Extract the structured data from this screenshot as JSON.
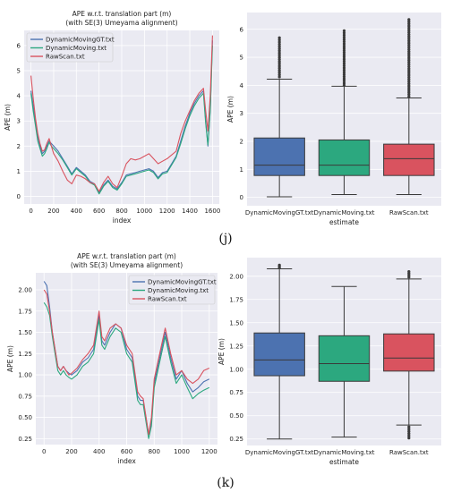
{
  "figure_labels": {
    "j": "(j)",
    "k": "(k)"
  },
  "colors": {
    "gt": "#4c72b0",
    "moving": "#2ca87f",
    "raw": "#d9535f",
    "panel_bg": "#eaeaf2",
    "grid": "#ffffff"
  },
  "chart_data": [
    {
      "id": "j-line",
      "type": "line",
      "title": "APE w.r.t. translation part (m)",
      "subtitle": "(with SE(3) Umeyama alignment)",
      "xlabel": "index",
      "ylabel": "APE (m)",
      "xlim": [
        -60,
        1660
      ],
      "ylim": [
        -0.3,
        6.6
      ],
      "xticks": [
        0,
        200,
        400,
        600,
        800,
        1000,
        1200,
        1400,
        1600
      ],
      "yticks": [
        0,
        1,
        2,
        3,
        4,
        5,
        6
      ],
      "grid": true,
      "legend": "top-left",
      "series": [
        {
          "name": "DynamicMovingGT.txt",
          "color": "#4c72b0",
          "x": [
            0,
            20,
            40,
            60,
            80,
            100,
            120,
            140,
            160,
            180,
            200,
            240,
            280,
            320,
            360,
            400,
            440,
            480,
            520,
            560,
            600,
            640,
            680,
            720,
            760,
            800,
            840,
            880,
            920,
            960,
            1000,
            1040,
            1080,
            1120,
            1160,
            1200,
            1240,
            1280,
            1320,
            1360,
            1400,
            1440,
            1480,
            1520,
            1540,
            1560,
            1580,
            1600
          ],
          "y": [
            4.2,
            3.6,
            2.9,
            2.4,
            2.0,
            1.7,
            1.8,
            2.0,
            2.2,
            2.1,
            2.0,
            1.8,
            1.5,
            1.2,
            0.9,
            1.15,
            1.0,
            0.85,
            0.6,
            0.5,
            0.15,
            0.45,
            0.65,
            0.4,
            0.3,
            0.55,
            0.85,
            0.9,
            0.95,
            1.0,
            1.05,
            1.1,
            1.0,
            0.75,
            0.95,
            1.0,
            1.3,
            1.6,
            2.2,
            2.8,
            3.3,
            3.7,
            4.0,
            4.2,
            3.0,
            2.0,
            3.5,
            6.2
          ]
        },
        {
          "name": "DynamicMovingTxt",
          "display_name": "DynamicMoving.txt",
          "color": "#2ca87f",
          "x": [
            0,
            20,
            40,
            60,
            80,
            100,
            120,
            140,
            160,
            180,
            200,
            240,
            280,
            320,
            360,
            400,
            440,
            480,
            520,
            560,
            600,
            640,
            680,
            720,
            760,
            800,
            840,
            880,
            920,
            960,
            1000,
            1040,
            1080,
            1120,
            1160,
            1200,
            1240,
            1280,
            1320,
            1360,
            1400,
            1440,
            1480,
            1520,
            1540,
            1560,
            1580,
            1600
          ],
          "y": [
            4.1,
            3.4,
            2.8,
            2.2,
            1.9,
            1.6,
            1.7,
            1.9,
            2.15,
            2.0,
            1.9,
            1.7,
            1.45,
            1.15,
            0.85,
            1.1,
            0.95,
            0.8,
            0.55,
            0.45,
            0.1,
            0.4,
            0.6,
            0.35,
            0.25,
            0.5,
            0.8,
            0.85,
            0.9,
            0.95,
            1.0,
            1.05,
            0.95,
            0.7,
            0.9,
            0.95,
            1.25,
            1.55,
            2.1,
            2.7,
            3.2,
            3.6,
            3.9,
            4.1,
            2.9,
            2.05,
            3.4,
            6.0
          ]
        },
        {
          "name": "RawScan.txt",
          "color": "#d9535f",
          "x": [
            0,
            20,
            40,
            60,
            80,
            100,
            120,
            140,
            160,
            180,
            200,
            240,
            280,
            320,
            360,
            400,
            440,
            480,
            520,
            560,
            600,
            640,
            680,
            720,
            760,
            800,
            840,
            880,
            920,
            960,
            1000,
            1040,
            1080,
            1120,
            1160,
            1200,
            1240,
            1280,
            1320,
            1360,
            1400,
            1440,
            1480,
            1520,
            1540,
            1560,
            1580,
            1600
          ],
          "y": [
            4.8,
            3.9,
            3.1,
            2.5,
            2.1,
            1.8,
            1.85,
            2.1,
            2.3,
            2.0,
            1.7,
            1.4,
            1.0,
            0.65,
            0.5,
            0.85,
            0.8,
            0.7,
            0.55,
            0.5,
            0.2,
            0.55,
            0.8,
            0.5,
            0.35,
            0.8,
            1.3,
            1.5,
            1.45,
            1.5,
            1.6,
            1.7,
            1.5,
            1.3,
            1.4,
            1.5,
            1.65,
            1.8,
            2.5,
            3.0,
            3.4,
            3.8,
            4.1,
            4.3,
            3.4,
            2.6,
            4.0,
            6.4
          ]
        }
      ]
    },
    {
      "id": "j-box",
      "type": "box",
      "xlabel": "estimate",
      "ylabel": "APE (m)",
      "ylim": [
        -0.3,
        6.6
      ],
      "yticks": [
        0,
        1,
        2,
        3,
        4,
        5,
        6
      ],
      "grid": true,
      "categories": [
        "DynamicMovingGT.txt",
        "DynamicMoving.txt",
        "RawScan.txt"
      ],
      "boxes": [
        {
          "min": 0.02,
          "q1": 0.78,
          "median": 1.15,
          "q3": 2.12,
          "max": 4.22,
          "outlier_range": [
            4.3,
            5.7
          ],
          "color": "#4c72b0"
        },
        {
          "min": 0.1,
          "q1": 0.78,
          "median": 1.15,
          "q3": 2.05,
          "max": 3.97,
          "outlier_range": [
            4.0,
            5.95
          ],
          "color": "#2ca87f"
        },
        {
          "min": 0.1,
          "q1": 0.78,
          "median": 1.38,
          "q3": 1.9,
          "max": 3.55,
          "outlier_range": [
            3.6,
            6.35
          ],
          "color": "#d9535f"
        }
      ]
    },
    {
      "id": "k-line",
      "type": "line",
      "title": "APE w.r.t. translation part (m)",
      "subtitle": "(with SE(3) Umeyama alignment)",
      "xlabel": "index",
      "ylabel": "APE (m)",
      "xlim": [
        -60,
        1260
      ],
      "ylim": [
        0.18,
        2.2
      ],
      "xticks": [
        0,
        200,
        400,
        600,
        800,
        1000,
        1200
      ],
      "yticks": [
        0.25,
        0.5,
        0.75,
        1.0,
        1.25,
        1.5,
        1.75,
        2.0
      ],
      "ytick_labels": [
        "0.25",
        "0.50",
        "0.75",
        "1.00",
        "1.25",
        "1.50",
        "1.75",
        "2.00"
      ],
      "grid": true,
      "legend": "top-right",
      "series": [
        {
          "name": "DynamicMovingGT.txt",
          "color": "#4c72b0",
          "x": [
            0,
            20,
            40,
            60,
            80,
            100,
            120,
            140,
            160,
            180,
            200,
            240,
            280,
            320,
            360,
            400,
            420,
            440,
            480,
            520,
            560,
            600,
            640,
            680,
            700,
            720,
            760,
            780,
            800,
            840,
            880,
            920,
            960,
            1000,
            1040,
            1080,
            1120,
            1160,
            1200
          ],
          "y": [
            2.1,
            2.05,
            1.8,
            1.5,
            1.3,
            1.1,
            1.05,
            1.1,
            1.05,
            1.02,
            1.0,
            1.05,
            1.15,
            1.2,
            1.3,
            1.7,
            1.4,
            1.35,
            1.5,
            1.6,
            1.55,
            1.3,
            1.2,
            0.75,
            0.7,
            0.7,
            0.3,
            0.45,
            0.9,
            1.2,
            1.5,
            1.2,
            0.95,
            1.05,
            0.9,
            0.8,
            0.85,
            0.92,
            0.95
          ]
        },
        {
          "name": "DynamicMovingTxt",
          "display_name": "DynamicMoving.txt",
          "color": "#2ca87f",
          "x": [
            0,
            20,
            40,
            60,
            80,
            100,
            120,
            140,
            160,
            180,
            200,
            240,
            280,
            320,
            360,
            400,
            420,
            440,
            480,
            520,
            560,
            600,
            640,
            680,
            700,
            720,
            760,
            780,
            800,
            840,
            880,
            920,
            960,
            1000,
            1040,
            1080,
            1120,
            1160,
            1200
          ],
          "y": [
            1.85,
            1.8,
            1.7,
            1.45,
            1.25,
            1.05,
            1.0,
            1.05,
            1.0,
            0.97,
            0.95,
            1.0,
            1.1,
            1.15,
            1.25,
            1.65,
            1.35,
            1.3,
            1.45,
            1.55,
            1.5,
            1.25,
            1.15,
            0.7,
            0.65,
            0.65,
            0.25,
            0.4,
            0.85,
            1.15,
            1.45,
            1.15,
            0.9,
            1.0,
            0.85,
            0.72,
            0.78,
            0.82,
            0.85
          ]
        },
        {
          "name": "RawScan.txt",
          "color": "#d9535f",
          "x": [
            0,
            20,
            40,
            60,
            80,
            100,
            120,
            140,
            160,
            180,
            200,
            240,
            280,
            320,
            360,
            400,
            420,
            440,
            480,
            520,
            560,
            600,
            640,
            680,
            700,
            720,
            760,
            780,
            800,
            840,
            880,
            920,
            960,
            1000,
            1040,
            1080,
            1120,
            1160,
            1200
          ],
          "y": [
            2.0,
            1.95,
            1.75,
            1.5,
            1.3,
            1.1,
            1.05,
            1.1,
            1.05,
            1.0,
            1.02,
            1.08,
            1.18,
            1.25,
            1.35,
            1.75,
            1.45,
            1.4,
            1.55,
            1.6,
            1.55,
            1.35,
            1.25,
            0.8,
            0.75,
            0.72,
            0.3,
            0.5,
            0.95,
            1.25,
            1.55,
            1.25,
            1.0,
            1.05,
            0.95,
            0.9,
            0.95,
            1.05,
            1.08
          ]
        }
      ]
    },
    {
      "id": "k-box",
      "type": "box",
      "xlabel": "estimate",
      "ylabel": "APE (m)",
      "ylim": [
        0.18,
        2.2
      ],
      "yticks": [
        0.25,
        0.5,
        0.75,
        1.0,
        1.25,
        1.5,
        1.75,
        2.0
      ],
      "ytick_labels": [
        "0.25",
        "0.50",
        "0.75",
        "1.00",
        "1.25",
        "1.50",
        "1.75",
        "2.00"
      ],
      "grid": true,
      "categories": [
        "DynamicMovingGT.txt",
        "DynamicMoving.txt",
        "RawScan.txt"
      ],
      "boxes": [
        {
          "min": 0.25,
          "q1": 0.93,
          "median": 1.1,
          "q3": 1.39,
          "max": 2.08,
          "outlier_range": [
            2.09,
            2.12
          ],
          "color": "#4c72b0"
        },
        {
          "min": 0.27,
          "q1": 0.87,
          "median": 1.06,
          "q3": 1.36,
          "max": 1.89,
          "outlier_range": null,
          "color": "#2ca87f"
        },
        {
          "min": 0.4,
          "q1": 0.98,
          "median": 1.12,
          "q3": 1.38,
          "max": 1.97,
          "outlier_range": [
            1.99,
            2.05
          ],
          "low_outlier_range": [
            0.26,
            0.38
          ],
          "color": "#d9535f"
        }
      ]
    }
  ]
}
